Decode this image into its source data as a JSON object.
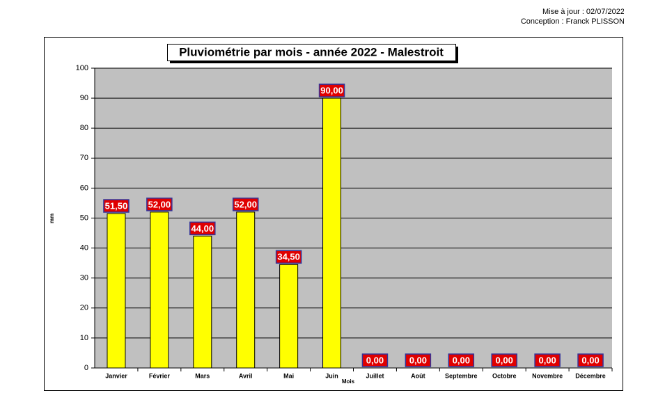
{
  "update_note": "Mise à jour : 02/07/2022",
  "author_note": "Conception : Franck PLISSON",
  "chart_data": {
    "type": "bar",
    "title": "Pluviométrie par mois - année 2022 - Malestroit",
    "x_label": "Mois",
    "y_label": "mm",
    "categories": [
      "Janvier",
      "Février",
      "Mars",
      "Avril",
      "Mai",
      "Juin",
      "Juillet",
      "Août",
      "Septembre",
      "Octobre",
      "Novembre",
      "Décembre"
    ],
    "values": [
      51.5,
      52,
      44,
      52,
      34.5,
      90,
      0,
      0,
      0,
      0,
      0,
      0
    ],
    "value_labels": [
      "51,50",
      "52,00",
      "44,00",
      "52,00",
      "34,50",
      "90,00",
      "0,00",
      "0,00",
      "0,00",
      "0,00",
      "0,00",
      "0,00"
    ],
    "color": "#ffff00",
    "label_color": "#e00000",
    "plot_background": "#c0c0c0",
    "ylim": [
      0,
      100
    ],
    "yticks": [
      0,
      10,
      20,
      30,
      40,
      50,
      60,
      70,
      80,
      90,
      100
    ],
    "grid": true
  }
}
